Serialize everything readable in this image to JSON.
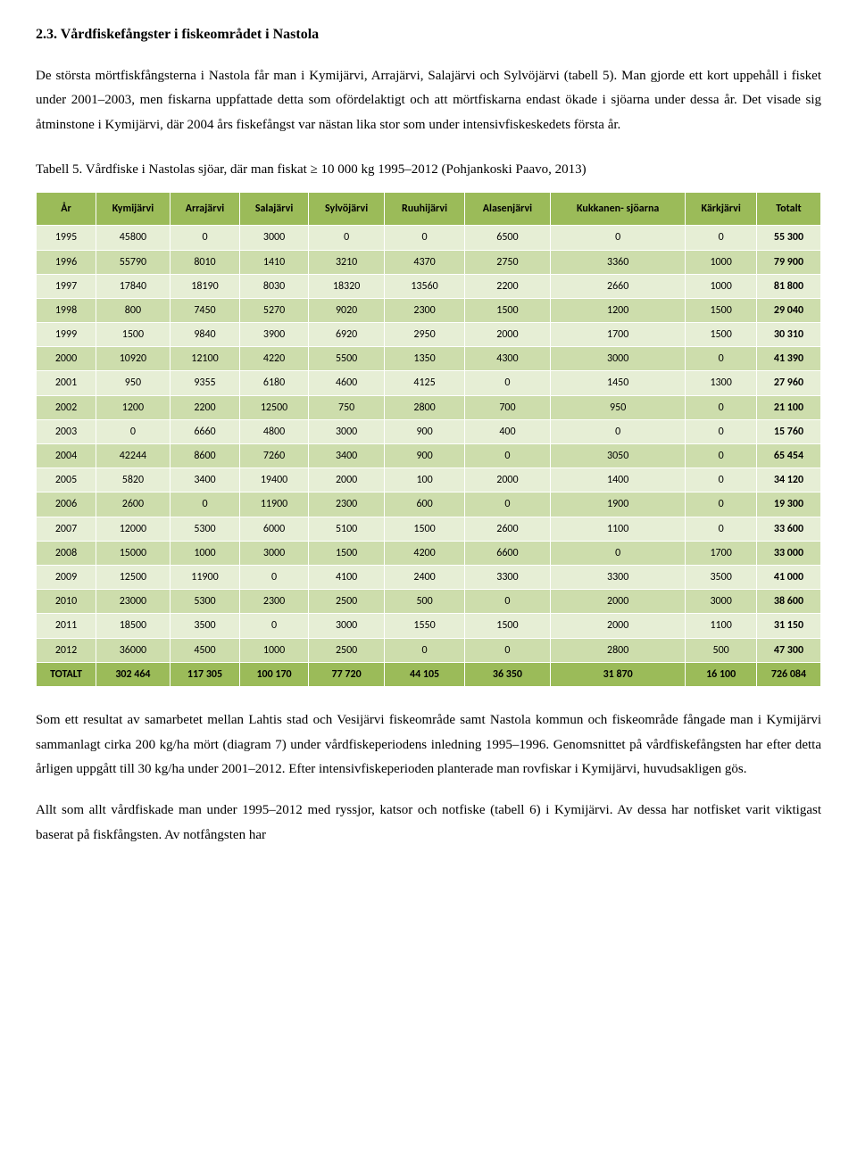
{
  "heading": "2.3. Vårdfiskefångster i fiskeområdet i Nastola",
  "para1": "De största mörtfiskfångsterna i Nastola får man i Kymijärvi, Arrajärvi, Salajärvi och Sylvöjärvi (tabell 5). Man gjorde ett kort uppehåll i fisket under 2001–2003, men fiskarna uppfattade detta som ofördelaktigt och att mörtfiskarna endast ökade i sjöarna under dessa år. Det visade sig åtminstone i Kymijärvi, där 2004 års fiskefångst var nästan lika stor som under intensivfiskeskedets första år.",
  "table_caption": "Tabell 5. Vårdfiske i Nastolas sjöar, där man fiskat ≥ 10 000 kg 1995–2012 (Pohjankoski Paavo, 2013)",
  "table": {
    "columns": [
      "År",
      "Kymijärvi",
      "Arrajärvi",
      "Salajärvi",
      "Sylvöjärvi",
      "Ruuhijärvi",
      "Alasenjärvi",
      "Kukkanen-\nsjöarna",
      "Kärkjärvi",
      "Totalt"
    ],
    "rows": [
      [
        "1995",
        "45800",
        "0",
        "3000",
        "0",
        "0",
        "6500",
        "0",
        "0",
        "55 300"
      ],
      [
        "1996",
        "55790",
        "8010",
        "1410",
        "3210",
        "4370",
        "2750",
        "3360",
        "1000",
        "79 900"
      ],
      [
        "1997",
        "17840",
        "18190",
        "8030",
        "18320",
        "13560",
        "2200",
        "2660",
        "1000",
        "81 800"
      ],
      [
        "1998",
        "800",
        "7450",
        "5270",
        "9020",
        "2300",
        "1500",
        "1200",
        "1500",
        "29 040"
      ],
      [
        "1999",
        "1500",
        "9840",
        "3900",
        "6920",
        "2950",
        "2000",
        "1700",
        "1500",
        "30 310"
      ],
      [
        "2000",
        "10920",
        "12100",
        "4220",
        "5500",
        "1350",
        "4300",
        "3000",
        "0",
        "41 390"
      ],
      [
        "2001",
        "950",
        "9355",
        "6180",
        "4600",
        "4125",
        "0",
        "1450",
        "1300",
        "27 960"
      ],
      [
        "2002",
        "1200",
        "2200",
        "12500",
        "750",
        "2800",
        "700",
        "950",
        "0",
        "21 100"
      ],
      [
        "2003",
        "0",
        "6660",
        "4800",
        "3000",
        "900",
        "400",
        "0",
        "0",
        "15 760"
      ],
      [
        "2004",
        "42244",
        "8600",
        "7260",
        "3400",
        "900",
        "0",
        "3050",
        "0",
        "65 454"
      ],
      [
        "2005",
        "5820",
        "3400",
        "19400",
        "2000",
        "100",
        "2000",
        "1400",
        "0",
        "34 120"
      ],
      [
        "2006",
        "2600",
        "0",
        "11900",
        "2300",
        "600",
        "0",
        "1900",
        "0",
        "19 300"
      ],
      [
        "2007",
        "12000",
        "5300",
        "6000",
        "5100",
        "1500",
        "2600",
        "1100",
        "0",
        "33 600"
      ],
      [
        "2008",
        "15000",
        "1000",
        "3000",
        "1500",
        "4200",
        "6600",
        "0",
        "1700",
        "33 000"
      ],
      [
        "2009",
        "12500",
        "11900",
        "0",
        "4100",
        "2400",
        "3300",
        "3300",
        "3500",
        "41 000"
      ],
      [
        "2010",
        "23000",
        "5300",
        "2300",
        "2500",
        "500",
        "0",
        "2000",
        "3000",
        "38 600"
      ],
      [
        "2011",
        "18500",
        "3500",
        "0",
        "3000",
        "1550",
        "1500",
        "2000",
        "1100",
        "31 150"
      ],
      [
        "2012",
        "36000",
        "4500",
        "1000",
        "2500",
        "0",
        "0",
        "2800",
        "500",
        "47 300"
      ]
    ],
    "footer": [
      "TOTALT",
      "302 464",
      "117 305",
      "100 170",
      "77 720",
      "44 105",
      "36 350",
      "31 870",
      "16 100",
      "726 084"
    ],
    "header_bg": "#9bbb59",
    "row_odd_bg": "#e6eed5",
    "row_even_bg": "#cdddac",
    "border_color": "#ffffff",
    "font_family": "Calibri",
    "font_size": 12
  },
  "para2": "Som ett resultat av samarbetet mellan Lahtis stad och Vesijärvi fiskeområde samt Nastola kommun och fiskeområde fångade man i Kymijärvi sammanlagt cirka 200 kg/ha mört (diagram 7) under vårdfiskeperiodens inledning 1995–1996. Genomsnittet på vårdfiskefångsten har efter detta årligen uppgått till 30 kg/ha under 2001–2012. Efter intensivfiskeperioden planterade man rovfiskar i Kymijärvi, huvudsakligen gös.",
  "para3": "Allt som allt vårdfiskade man under 1995–2012 med ryssjor, katsor och notfiske (tabell 6) i Kymijärvi. Av dessa har notfisket varit viktigast baserat på fiskfångsten. Av notfångsten har"
}
